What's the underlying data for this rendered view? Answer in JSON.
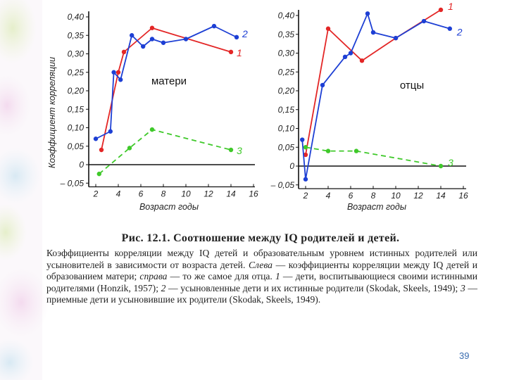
{
  "theme": {
    "red": "#e32626",
    "blue": "#1d3fd4",
    "green": "#3fc92a",
    "accent": "#3a6db0"
  },
  "chart_data": [
    {
      "type": "line",
      "panel_label": "матери",
      "ylabel": "Коэффициент корреляции",
      "xlabel": "Возраст годы",
      "xlim": [
        1,
        16
      ],
      "ylim": [
        -0.05,
        0.41
      ],
      "xticks": [
        2,
        4,
        6,
        8,
        10,
        12,
        14,
        16
      ],
      "yticks": [
        {
          "v": 0.4,
          "t": "0,40"
        },
        {
          "v": 0.35,
          "t": "0,35"
        },
        {
          "v": 0.3,
          "t": "0,30"
        },
        {
          "v": 0.25,
          "t": "0,25"
        },
        {
          "v": 0.2,
          "t": "0,20"
        },
        {
          "v": 0.15,
          "t": "0,15"
        },
        {
          "v": 0.1,
          "t": "0,10"
        },
        {
          "v": 0.05,
          "t": "0,05"
        },
        {
          "v": 0.0,
          "t": "0"
        },
        {
          "v": -0.05,
          "t": "– 0,05"
        }
      ],
      "series": [
        {
          "name": "1",
          "color": "red",
          "dash": false,
          "x": [
            2.5,
            4,
            4.5,
            7,
            14
          ],
          "y": [
            0.04,
            0.25,
            0.305,
            0.37,
            0.305
          ]
        },
        {
          "name": "2",
          "color": "blue",
          "dash": false,
          "x": [
            2,
            3.3,
            3.6,
            4.2,
            5.2,
            6.2,
            7,
            8,
            10,
            12.5,
            14.5
          ],
          "y": [
            0.07,
            0.09,
            0.25,
            0.23,
            0.35,
            0.32,
            0.34,
            0.33,
            0.34,
            0.375,
            0.345
          ]
        },
        {
          "name": "3",
          "color": "green",
          "dash": true,
          "x": [
            2.3,
            5,
            7,
            14
          ],
          "y": [
            -0.025,
            0.045,
            0.095,
            0.04
          ]
        }
      ]
    },
    {
      "type": "line",
      "panel_label": "отцы",
      "xlabel": "Возраст годы",
      "xlim": [
        1,
        16
      ],
      "ylim": [
        -0.05,
        0.41
      ],
      "xticks": [
        2,
        4,
        6,
        8,
        10,
        12,
        14,
        16
      ],
      "yticks": [
        {
          "v": 0.4,
          "t": "0,40"
        },
        {
          "v": 0.35,
          "t": "0,35"
        },
        {
          "v": 0.3,
          "t": "0,30"
        },
        {
          "v": 0.25,
          "t": "0,25"
        },
        {
          "v": 0.2,
          "t": "0,20"
        },
        {
          "v": 0.15,
          "t": "0,15"
        },
        {
          "v": 0.1,
          "t": "0,10"
        },
        {
          "v": 0.05,
          "t": "0,05"
        },
        {
          "v": 0.0,
          "t": "0"
        },
        {
          "v": -0.05,
          "t": "– 0,05"
        }
      ],
      "series": [
        {
          "name": "1",
          "color": "red",
          "dash": false,
          "x": [
            2,
            4,
            7,
            10,
            14
          ],
          "y": [
            0.03,
            0.365,
            0.28,
            0.34,
            0.415
          ]
        },
        {
          "name": "2",
          "color": "blue",
          "dash": false,
          "x": [
            1.7,
            2,
            3.5,
            5.5,
            6,
            7.5,
            8,
            10,
            12.5,
            14.8
          ],
          "y": [
            0.07,
            -0.035,
            0.215,
            0.29,
            0.3,
            0.405,
            0.355,
            0.34,
            0.385,
            0.365
          ]
        },
        {
          "name": "3",
          "color": "green",
          "dash": true,
          "x": [
            2,
            4,
            6.5,
            14
          ],
          "y": [
            0.05,
            0.04,
            0.04,
            0.0
          ]
        }
      ]
    }
  ],
  "caption": {
    "title": "Рис. 12.1. Соотношение между IQ родителей и детей.",
    "body_parts": [
      {
        "t": "Коэффициенты корреляции между IQ детей и образовательным уровнем истинных родителей или усыновителей в зависимости от возраста детей. "
      },
      {
        "t": "Слева",
        "em": true
      },
      {
        "t": " — коэффициенты корреляции между IQ детей и образованием матери; "
      },
      {
        "t": "справа",
        "em": true
      },
      {
        "t": " — то же самое для отца. "
      },
      {
        "t": "1",
        "em": true
      },
      {
        "t": " — дети, воспитывающиеся своими истинными родителями (Honzik, 1957); "
      },
      {
        "t": "2",
        "em": true
      },
      {
        "t": " — усыновленные дети и их истинные родители (Skodak, Skeels, 1949); "
      },
      {
        "t": "3",
        "em": true
      },
      {
        "t": " — приемные дети и усыновившие их родители (Skodak, Skeels, 1949)."
      }
    ]
  },
  "page_number": "39"
}
